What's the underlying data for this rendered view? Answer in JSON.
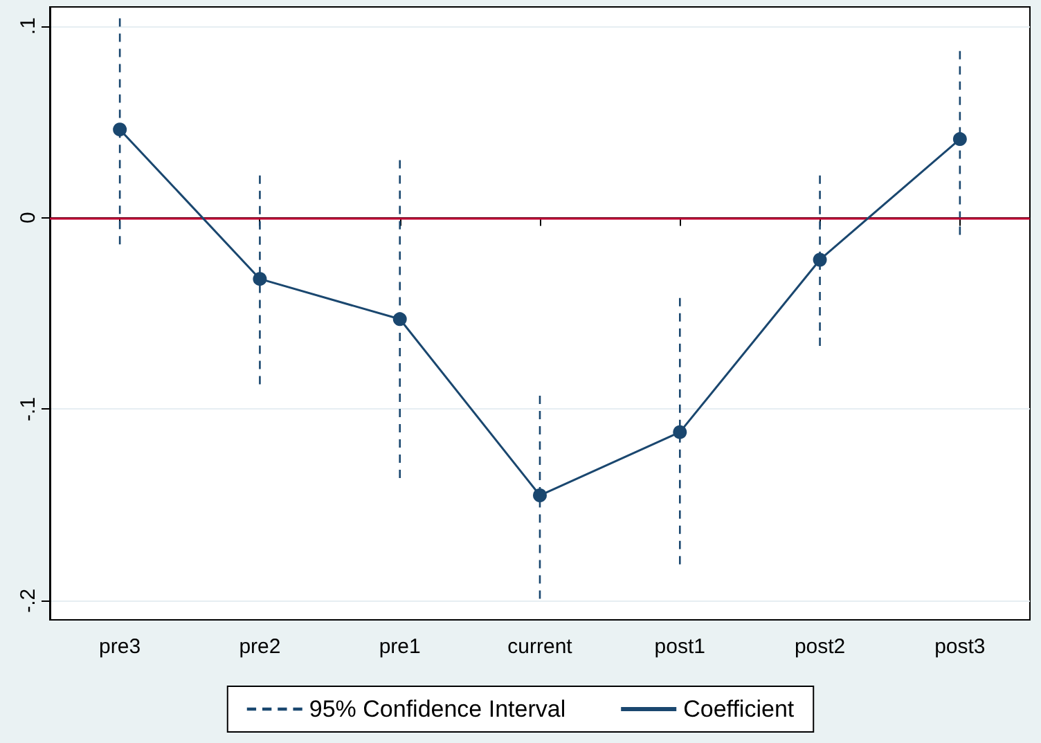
{
  "chart_data": {
    "type": "line",
    "categories": [
      "pre3",
      "pre2",
      "pre1",
      "current",
      "post1",
      "post2",
      "post3"
    ],
    "series": [
      {
        "name": "Coefficient",
        "color": "#1a476f",
        "line_style": "solid",
        "marker": "circle",
        "values": [
          0.046,
          -0.032,
          -0.053,
          -0.145,
          -0.112,
          -0.022,
          0.041
        ],
        "errors": [
          [
            -0.014,
            0.104
          ],
          [
            -0.087,
            0.022
          ],
          [
            -0.136,
            0.03
          ],
          [
            -0.199,
            -0.093
          ],
          [
            -0.181,
            -0.042
          ],
          [
            -0.067,
            0.022
          ],
          [
            -0.009,
            0.087
          ]
        ]
      }
    ],
    "annotations": [
      "95% Confidence Interval"
    ],
    "ylim": [
      -0.21,
      0.11
    ],
    "yticks": [
      {
        "value": -0.2,
        "label": "-.2"
      },
      {
        "value": -0.1,
        "label": "-.1"
      },
      {
        "value": 0,
        "label": "0"
      },
      {
        "value": 0.1,
        "label": ".1"
      }
    ],
    "grid": "y",
    "ref_lines": [
      {
        "axis": "y",
        "value": 0,
        "color": "#c10534"
      }
    ],
    "legend": "bottom"
  }
}
